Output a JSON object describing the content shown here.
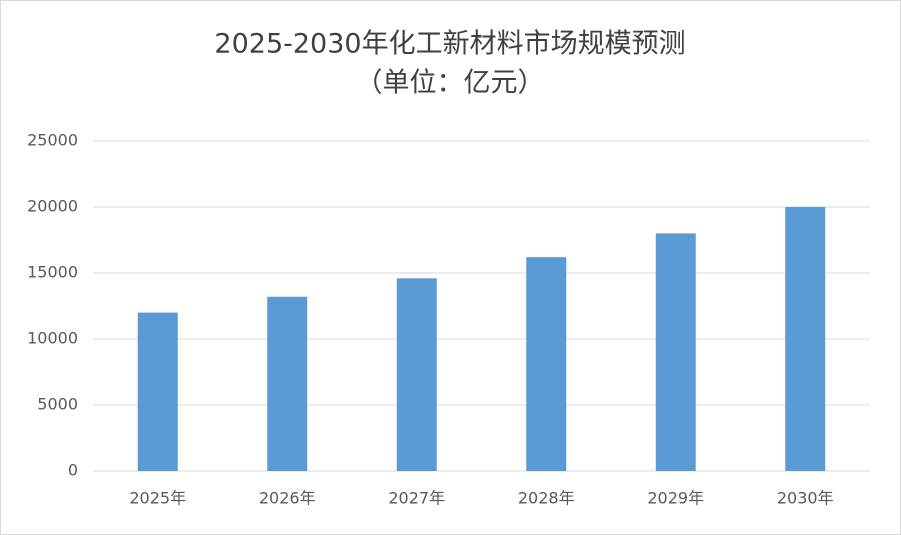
{
  "chart_data": {
    "type": "bar",
    "title": "2025-2030年化工新材料市场规模预测",
    "subtitle": "（单位：亿元）",
    "categories": [
      "2025年",
      "2026年",
      "2027年",
      "2028年",
      "2029年",
      "2030年"
    ],
    "values": [
      12000,
      13200,
      14600,
      16200,
      18000,
      20000
    ],
    "color": "#5b9bd5",
    "ylim": [
      0,
      25000
    ],
    "yticks": [
      0,
      5000,
      10000,
      15000,
      20000,
      25000
    ],
    "grid": true
  }
}
